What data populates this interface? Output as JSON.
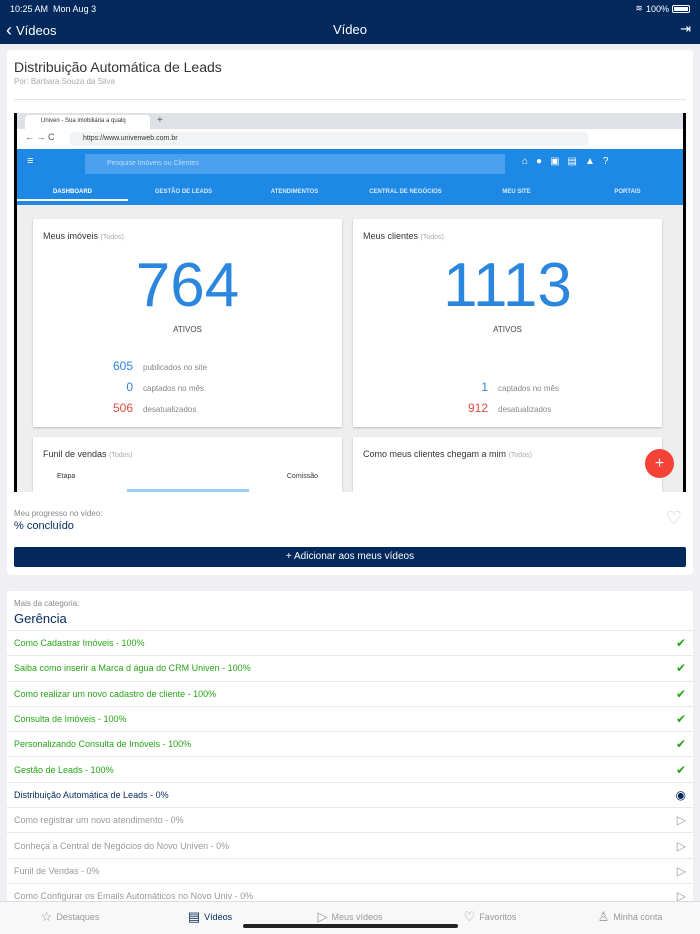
{
  "status": {
    "time": "10:25 AM",
    "date": "Mon Aug 3",
    "battery": "100%"
  },
  "nav": {
    "back_label": "Vídeos",
    "title": "Vídeo"
  },
  "video": {
    "title": "Distribuição Automática de Leads",
    "author": "Por: Barbara Souza da Silva",
    "frame": {
      "tab_title": "Univen - Sua imobiliária a qualq",
      "url": "https://www.univenweb.com.br",
      "search_placeholder": "Pesquise Imóveis ou Clientes",
      "menu": [
        "DASHBOARD",
        "GESTÃO DE LEADS",
        "ATENDIMENTOS",
        "CENTRAL DE NEGÓCIOS",
        "MEU SITE",
        "PORTAIS"
      ],
      "imoveis": {
        "title": "Meus imóveis",
        "filter": "(Todos)",
        "total": "764",
        "total_label": "ATIVOS",
        "stats": [
          {
            "v": "605",
            "l": "publicados no site"
          },
          {
            "v": "0",
            "l": "captados no mês"
          },
          {
            "v": "506",
            "l": "desatualizados"
          }
        ]
      },
      "clientes": {
        "title": "Meus clientes",
        "filter": "(Todos)",
        "total": "1113",
        "total_label": "ATIVOS",
        "stats": [
          {
            "v": "1",
            "l": "captados no mês"
          },
          {
            "v": "912",
            "l": "desatualizados"
          }
        ]
      },
      "funil": {
        "title": "Funil de vendas",
        "filter": "(Todos)",
        "col1": "Etapa",
        "col2": "Comissão"
      },
      "chegam": {
        "title": "Como meus clientes chegam a mim",
        "filter": "(Todos)"
      }
    }
  },
  "progress": {
    "label": "Meu progresso no vídeo:",
    "value": "% concluído"
  },
  "add_button": "Adicionar aos meus vídeos",
  "category": {
    "label": "Mais da categoria:",
    "name": "Gerência",
    "items": [
      {
        "t": "Como Cadastrar Imóveis - 100%",
        "s": "done"
      },
      {
        "t": "Saiba como inserir a Marca d água do CRM Univen - 100%",
        "s": "done"
      },
      {
        "t": "Como realizar um novo cadastro de cliente - 100%",
        "s": "done"
      },
      {
        "t": "Consulta de Imóveis - 100%",
        "s": "done"
      },
      {
        "t": "Personalizando Consulta de Imóveis - 100%",
        "s": "done"
      },
      {
        "t": "Gestão de Leads - 100%",
        "s": "done"
      },
      {
        "t": "Distribuição Automática de Leads - 0%",
        "s": "current"
      },
      {
        "t": "Como registrar um novo atendimento - 0%",
        "s": "todo"
      },
      {
        "t": "Conheça a Central de Negócios do Novo Univen - 0%",
        "s": "todo"
      },
      {
        "t": "Funil de Vendas - 0%",
        "s": "todo"
      },
      {
        "t": "Como Configurar os Emails Automáticos no Novo Univ - 0%",
        "s": "todo"
      }
    ]
  },
  "tabbar": [
    {
      "label": "Destaques",
      "icon": "star-icon"
    },
    {
      "label": "Vídeos",
      "icon": "film-icon",
      "active": true
    },
    {
      "label": "Meus vídeos",
      "icon": "play-circle-icon"
    },
    {
      "label": "Favoritos",
      "icon": "heart-icon"
    },
    {
      "label": "Minha conta",
      "icon": "user-icon"
    }
  ],
  "colors": {
    "navy": "#03295c",
    "green": "#26a516",
    "blue": "#1e88e5"
  }
}
